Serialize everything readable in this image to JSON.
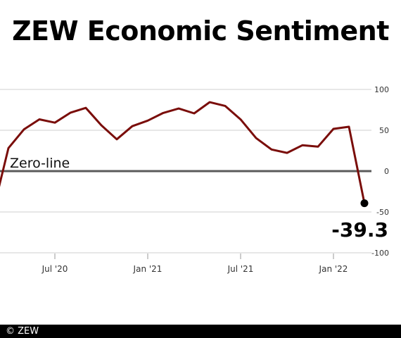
{
  "header": {
    "title": "ZEW Economic Sentiment"
  },
  "footer": {
    "credit": "© ZEW"
  },
  "colors": {
    "line": "#7a0d0a",
    "zero_line": "#5a5a5a",
    "grid": "#cfcfcf",
    "axis_text": "#333333"
  },
  "chart_data": {
    "type": "line",
    "title": "ZEW Economic Sentiment",
    "xlabel": "",
    "ylabel": "",
    "ylim": [
      -100,
      100
    ],
    "y_ticks": [
      100,
      50,
      0,
      -50,
      -100
    ],
    "x_ticks": [
      {
        "label": "Jul '20",
        "date": "2020-07"
      },
      {
        "label": "Jan '21",
        "date": "2021-01"
      },
      {
        "label": "Jul '21",
        "date": "2021-07"
      },
      {
        "label": "Jan '22",
        "date": "2022-01"
      }
    ],
    "grid": true,
    "reference_line": {
      "value": 0,
      "label": "Zero-line"
    },
    "last_value_label": "-39.3",
    "series": [
      {
        "x": [
          "2020-03",
          "2020-04",
          "2020-05",
          "2020-06",
          "2020-07",
          "2020-08",
          "2020-09",
          "2020-10",
          "2020-11",
          "2020-12",
          "2021-01",
          "2021-02",
          "2021-03",
          "2021-04",
          "2021-05",
          "2021-06",
          "2021-07",
          "2021-08",
          "2021-09",
          "2021-10",
          "2021-11",
          "2021-12",
          "2022-01",
          "2022-02",
          "2022-03"
        ],
        "y": [
          -49.5,
          28.2,
          51.0,
          63.4,
          59.3,
          71.5,
          77.4,
          56.1,
          39.0,
          55.0,
          61.8,
          71.2,
          76.6,
          70.7,
          84.4,
          79.8,
          63.3,
          40.4,
          26.5,
          22.3,
          31.7,
          29.9,
          51.7,
          54.3,
          -39.3
        ]
      }
    ]
  }
}
